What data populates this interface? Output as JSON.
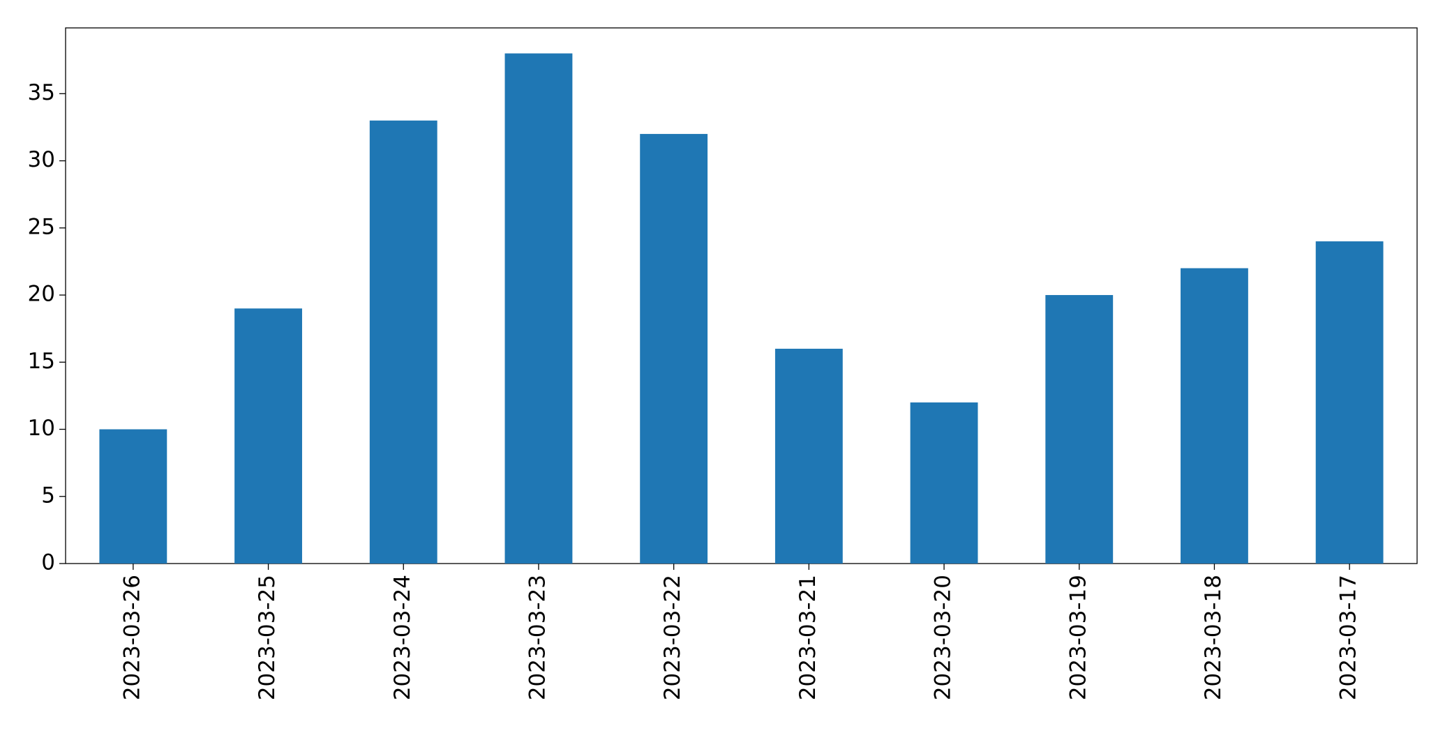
{
  "chart_data": {
    "type": "bar",
    "categories": [
      "2023-03-26",
      "2023-03-25",
      "2023-03-24",
      "2023-03-23",
      "2023-03-22",
      "2023-03-21",
      "2023-03-20",
      "2023-03-19",
      "2023-03-18",
      "2023-03-17"
    ],
    "values": [
      10,
      19,
      33,
      38,
      32,
      16,
      12,
      20,
      22,
      24
    ],
    "color": "#1f77b4",
    "ylim": [
      0,
      39.9
    ],
    "yticks": [
      0,
      5,
      10,
      15,
      20,
      25,
      30,
      35
    ],
    "grid": false
  }
}
